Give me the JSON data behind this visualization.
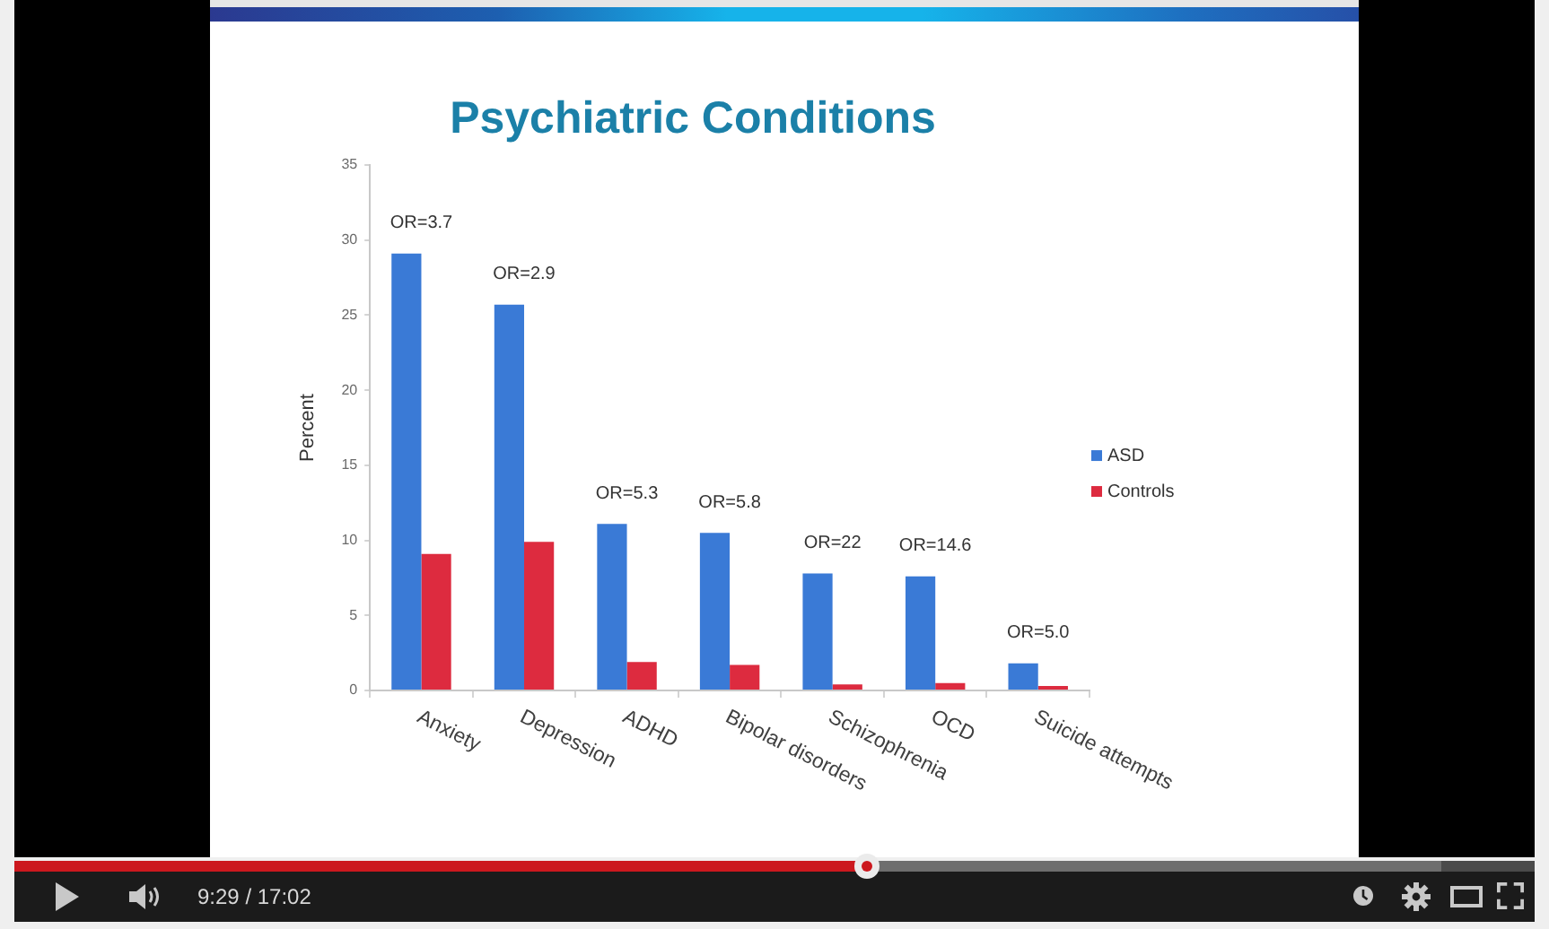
{
  "chart_data": {
    "type": "bar",
    "title": "Psychiatric Conditions",
    "ylabel": "Percent",
    "categories": [
      "Anxiety",
      "Depression",
      "ADHD",
      "Bipolar disorders",
      "Schizophrenia",
      "OCD",
      "Suicide attempts"
    ],
    "series": [
      {
        "name": "ASD",
        "color": "#3a7ad6",
        "values": [
          29.1,
          25.7,
          11.1,
          10.5,
          7.8,
          7.6,
          1.8
        ]
      },
      {
        "name": "Controls",
        "color": "#dd2b3f",
        "values": [
          9.1,
          9.9,
          1.9,
          1.7,
          0.4,
          0.5,
          0.3
        ]
      }
    ],
    "ylim": [
      0,
      35
    ],
    "yticks": [
      0,
      5,
      10,
      15,
      20,
      25,
      30,
      35
    ],
    "legend": "right",
    "annotations": [
      {
        "text": "OR=3.7",
        "x": "Anxiety",
        "y": 29.1
      },
      {
        "text": "OR=2.9",
        "x": "Depression",
        "y": 25.7
      },
      {
        "text": "OR=5.3",
        "x": "ADHD",
        "y": 11.1
      },
      {
        "text": "OR=5.8",
        "x": "Bipolar disorders",
        "y": 10.5
      },
      {
        "text": "OR=22",
        "x": "Schizophrenia",
        "y": 7.8
      },
      {
        "text": "OR=14.6",
        "x": "OCD",
        "y": 7.6
      },
      {
        "text": "OR=5.0",
        "x": "Suicide attempts",
        "y": 1.8
      },
      "9:29 / 17:02"
    ]
  }
}
